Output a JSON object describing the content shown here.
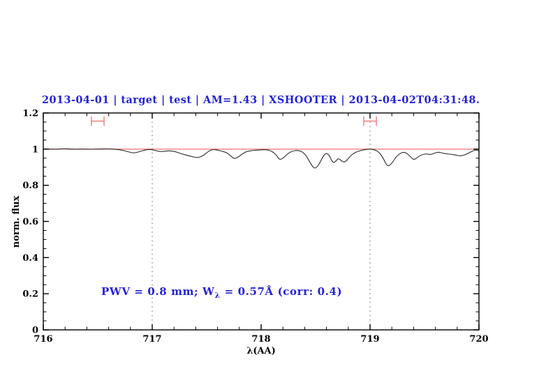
{
  "title": {
    "text": "2013-04-01 | target | test | AM=1.43 | XSHOOTER | 2013-04-02T04:31:48.",
    "color": "#2323d7"
  },
  "annotation": {
    "prefix": "PWV = 0.8 mm; W",
    "subscript": "λ",
    "suffix": " = 0.57Å (corr: 0.4)",
    "color": "#2323d7"
  },
  "chart_data": {
    "type": "line",
    "title": "2013-04-01 | target | test | AM=1.43 | XSHOOTER | 2013-04-02T04:31:48.",
    "xlabel": "λ(AA)",
    "ylabel": "norm. flux",
    "xlim": [
      716,
      720
    ],
    "ylim": [
      0,
      1.2
    ],
    "x_major_ticks": [
      716,
      717,
      718,
      719,
      720
    ],
    "x_tick_labels": [
      "716",
      "717",
      "718",
      "719",
      "720"
    ],
    "x_minor_step": 0.2,
    "y_major_ticks": [
      0,
      0.2,
      0.4,
      0.6,
      0.8,
      1,
      1.2
    ],
    "y_tick_labels": [
      "0",
      "0.2",
      "0.4",
      "0.6",
      "0.8",
      "1",
      "1.2"
    ],
    "y_minor_step": 0.05,
    "grid": "off",
    "legend": "none",
    "colors": {
      "frame": "#000000",
      "spectrum": "#2b2b2b",
      "continuum": "#ef8080",
      "range_marker": "#ef8080",
      "reference_line": "#7a7a7a",
      "annotation_blue": "#2323d7"
    },
    "reference_vlines": [
      717,
      719
    ],
    "continuum_level": 1.0,
    "range_markers": [
      {
        "x_center": 716.5,
        "half_width": 0.058,
        "y": 1.155,
        "cap_half_height": 0.026
      },
      {
        "x_center": 719.0,
        "half_width": 0.058,
        "y": 1.155,
        "cap_half_height": 0.026
      }
    ],
    "series": [
      {
        "name": "observed spectrum",
        "points": [
          [
            716.0,
            1.0
          ],
          [
            716.06,
            1.001
          ],
          [
            716.12,
            0.999
          ],
          [
            716.18,
            1.003
          ],
          [
            716.24,
            1.001
          ],
          [
            716.3,
            0.999
          ],
          [
            716.36,
            1.001
          ],
          [
            716.42,
            0.999
          ],
          [
            716.48,
            1.0
          ],
          [
            716.54,
            1.001
          ],
          [
            716.6,
            1.002
          ],
          [
            716.66,
            0.999
          ],
          [
            716.72,
            0.995
          ],
          [
            716.78,
            0.985
          ],
          [
            716.83,
            0.978
          ],
          [
            716.88,
            0.985
          ],
          [
            716.93,
            0.995
          ],
          [
            716.97,
            0.999
          ],
          [
            717.0,
            0.997
          ],
          [
            717.04,
            0.99
          ],
          [
            717.08,
            0.986
          ],
          [
            717.12,
            0.989
          ],
          [
            717.16,
            0.991
          ],
          [
            717.21,
            0.987
          ],
          [
            717.26,
            0.976
          ],
          [
            717.31,
            0.967
          ],
          [
            717.36,
            0.96
          ],
          [
            717.42,
            0.951
          ],
          [
            717.47,
            0.964
          ],
          [
            717.52,
            0.99
          ],
          [
            717.56,
            0.998
          ],
          [
            717.6,
            0.995
          ],
          [
            717.64,
            0.988
          ],
          [
            717.68,
            0.982
          ],
          [
            717.72,
            0.964
          ],
          [
            717.75,
            0.946
          ],
          [
            717.79,
            0.955
          ],
          [
            717.83,
            0.976
          ],
          [
            717.87,
            0.988
          ],
          [
            717.92,
            0.992
          ],
          [
            717.97,
            0.995
          ],
          [
            718.02,
            0.997
          ],
          [
            718.06,
            0.996
          ],
          [
            718.1,
            0.988
          ],
          [
            718.14,
            0.968
          ],
          [
            718.17,
            0.939
          ],
          [
            718.21,
            0.953
          ],
          [
            718.25,
            0.978
          ],
          [
            718.29,
            0.99
          ],
          [
            718.33,
            0.993
          ],
          [
            718.37,
            0.989
          ],
          [
            718.41,
            0.968
          ],
          [
            718.45,
            0.925
          ],
          [
            718.49,
            0.888
          ],
          [
            718.53,
            0.913
          ],
          [
            718.57,
            0.962
          ],
          [
            718.6,
            0.98
          ],
          [
            718.63,
            0.962
          ],
          [
            718.66,
            0.921
          ],
          [
            718.69,
            0.936
          ],
          [
            718.71,
            0.95
          ],
          [
            718.74,
            0.934
          ],
          [
            718.77,
            0.926
          ],
          [
            718.81,
            0.956
          ],
          [
            718.85,
            0.978
          ],
          [
            718.9,
            0.99
          ],
          [
            718.95,
            0.997
          ],
          [
            719.0,
            1.001
          ],
          [
            719.04,
            0.997
          ],
          [
            719.08,
            0.985
          ],
          [
            719.12,
            0.952
          ],
          [
            719.16,
            0.901
          ],
          [
            719.2,
            0.921
          ],
          [
            719.24,
            0.958
          ],
          [
            719.28,
            0.979
          ],
          [
            719.32,
            0.984
          ],
          [
            719.36,
            0.966
          ],
          [
            719.4,
            0.938
          ],
          [
            719.44,
            0.957
          ],
          [
            719.48,
            0.971
          ],
          [
            719.52,
            0.974
          ],
          [
            719.56,
            0.969
          ],
          [
            719.6,
            0.98
          ],
          [
            719.63,
            0.984
          ],
          [
            719.67,
            0.977
          ],
          [
            719.71,
            0.974
          ],
          [
            719.75,
            0.971
          ],
          [
            719.79,
            0.967
          ],
          [
            719.83,
            0.962
          ],
          [
            719.87,
            0.968
          ],
          [
            719.91,
            0.98
          ],
          [
            719.95,
            0.992
          ],
          [
            719.98,
            0.996
          ],
          [
            720.0,
            0.989
          ]
        ]
      }
    ],
    "annotation_text": "PWV = 0.8 mm; Wλ = 0.57Å (corr: 0.4)"
  }
}
